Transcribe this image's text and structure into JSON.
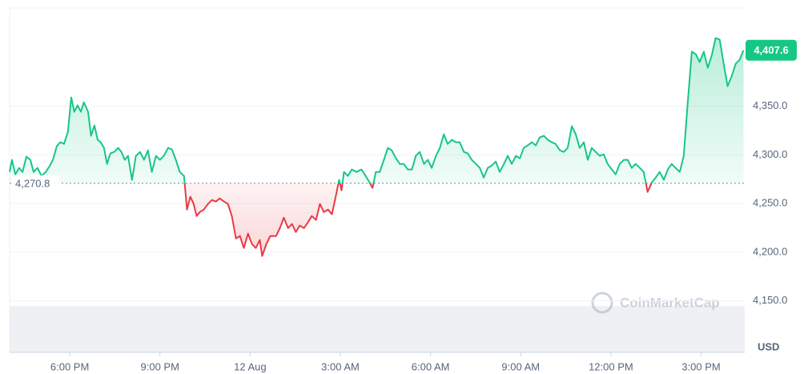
{
  "chart_data": {
    "type": "line",
    "currency_label": "USD",
    "watermark": "CoinMarketCap",
    "baseline": {
      "value": 4270.8,
      "label": "4,270.8"
    },
    "current_price": {
      "value": 4407.6,
      "label": "4,407.6"
    },
    "up_color": "#16c784",
    "down_color": "#ea3943",
    "grid": true,
    "xlim": [
      16,
      40.45
    ],
    "xticks": [
      {
        "value": 18,
        "label": "6:00 PM"
      },
      {
        "value": 21,
        "label": "9:00 PM"
      },
      {
        "value": 24,
        "label": "12 Aug"
      },
      {
        "value": 27,
        "label": "3:00 AM"
      },
      {
        "value": 30,
        "label": "6:00 AM"
      },
      {
        "value": 33,
        "label": "9:00 AM"
      },
      {
        "value": 36,
        "label": "12:00 PM"
      },
      {
        "value": 39,
        "label": "3:00 PM"
      }
    ],
    "ylim": [
      4097,
      4451
    ],
    "yticks": [
      {
        "value": 4150,
        "label": "4,150.0"
      },
      {
        "value": 4200,
        "label": "4,200.0"
      },
      {
        "value": 4250,
        "label": "4,250.0"
      },
      {
        "value": 4300,
        "label": "4,300.0"
      },
      {
        "value": 4350,
        "label": "4,350.0"
      }
    ],
    "x": [
      16.0,
      16.08,
      16.19,
      16.32,
      16.43,
      16.56,
      16.69,
      16.8,
      16.93,
      17.06,
      17.2,
      17.33,
      17.44,
      17.57,
      17.68,
      17.81,
      17.94,
      18.05,
      18.15,
      18.26,
      18.37,
      18.47,
      18.61,
      18.71,
      18.82,
      18.93,
      19.03,
      19.14,
      19.24,
      19.35,
      19.48,
      19.61,
      19.72,
      19.83,
      19.94,
      20.07,
      20.2,
      20.34,
      20.47,
      20.6,
      20.73,
      20.87,
      21.0,
      21.13,
      21.27,
      21.4,
      21.53,
      21.66,
      21.8,
      21.9,
      22.01,
      22.12,
      22.22,
      22.33,
      22.46,
      22.6,
      22.73,
      22.86,
      22.99,
      23.13,
      23.26,
      23.39,
      23.53,
      23.66,
      23.79,
      23.93,
      24.06,
      24.19,
      24.32,
      24.4,
      24.54,
      24.67,
      24.86,
      24.99,
      25.12,
      25.26,
      25.39,
      25.52,
      25.65,
      25.79,
      25.92,
      26.05,
      26.19,
      26.32,
      26.45,
      26.59,
      26.72,
      26.85,
      26.96,
      27.04,
      27.12,
      27.25,
      27.38,
      27.54,
      27.7,
      27.81,
      27.97,
      28.07,
      28.18,
      28.31,
      28.45,
      28.58,
      28.71,
      28.85,
      28.98,
      29.11,
      29.24,
      29.38,
      29.51,
      29.64,
      29.78,
      29.91,
      30.04,
      30.18,
      30.31,
      30.44,
      30.57,
      30.71,
      30.84,
      30.97,
      31.11,
      31.24,
      31.37,
      31.51,
      31.64,
      31.77,
      31.9,
      32.04,
      32.17,
      32.3,
      32.44,
      32.57,
      32.7,
      32.84,
      32.97,
      33.1,
      33.23,
      33.37,
      33.5,
      33.63,
      33.77,
      33.9,
      34.03,
      34.16,
      34.3,
      34.43,
      34.56,
      34.7,
      34.83,
      34.96,
      35.1,
      35.23,
      35.36,
      35.49,
      35.63,
      35.76,
      35.89,
      36.03,
      36.16,
      36.29,
      36.43,
      36.56,
      36.69,
      36.82,
      36.96,
      37.09,
      37.22,
      37.36,
      37.49,
      37.62,
      37.76,
      37.89,
      38.02,
      38.15,
      38.29,
      38.42,
      38.55,
      38.69,
      38.82,
      38.95,
      39.09,
      39.22,
      39.35,
      39.48,
      39.62,
      39.75,
      39.88,
      40.02,
      40.15,
      40.28,
      40.41
    ],
    "values": [
      4282.5,
      4294.9,
      4280.0,
      4286.6,
      4282.5,
      4298.2,
      4294.9,
      4282.5,
      4286.6,
      4278.4,
      4282.5,
      4288.3,
      4294.9,
      4308.9,
      4313.0,
      4311.3,
      4323.7,
      4359.1,
      4344.3,
      4350.9,
      4344.3,
      4354.2,
      4344.3,
      4319.6,
      4330.3,
      4315.5,
      4313.0,
      4307.2,
      4290.7,
      4301.5,
      4303.1,
      4307.2,
      4303.1,
      4294.9,
      4299.0,
      4274.3,
      4299.0,
      4303.1,
      4294.9,
      4304.7,
      4282.5,
      4299.0,
      4294.9,
      4299.0,
      4307.2,
      4305.6,
      4294.9,
      4282.5,
      4278.4,
      4243.8,
      4257.0,
      4249.6,
      4237.2,
      4241.3,
      4243.8,
      4249.6,
      4253.7,
      4252.0,
      4255.3,
      4252.0,
      4249.6,
      4237.2,
      4214.1,
      4216.6,
      4204.3,
      4219.1,
      4208.4,
      4204.3,
      4212.5,
      4196.0,
      4208.4,
      4216.6,
      4216.6,
      4224.8,
      4235.5,
      4224.8,
      4229.0,
      4220.7,
      4227.3,
      4224.8,
      4230.6,
      4237.2,
      4233.1,
      4249.6,
      4241.3,
      4243.8,
      4238.9,
      4257.8,
      4274.3,
      4263.6,
      4282.5,
      4278.4,
      4285.0,
      4282.5,
      4285.0,
      4280.0,
      4271.8,
      4266.0,
      4282.5,
      4282.5,
      4294.9,
      4307.2,
      4304.7,
      4296.5,
      4290.7,
      4290.7,
      4285.0,
      4285.0,
      4299.0,
      4303.1,
      4290.7,
      4294.9,
      4286.6,
      4299.0,
      4307.2,
      4321.2,
      4311.3,
      4315.5,
      4313.0,
      4313.0,
      4303.1,
      4301.5,
      4294.9,
      4290.7,
      4286.6,
      4276.7,
      4286.6,
      4289.1,
      4293.2,
      4282.5,
      4290.7,
      4299.0,
      4290.7,
      4299.0,
      4296.5,
      4307.2,
      4309.7,
      4313.0,
      4309.7,
      4317.9,
      4319.6,
      4315.5,
      4313.0,
      4311.3,
      4304.7,
      4303.1,
      4307.2,
      4329.5,
      4321.2,
      4307.2,
      4313.0,
      4294.9,
      4307.2,
      4303.1,
      4299.0,
      4300.6,
      4290.7,
      4285.0,
      4280.0,
      4290.7,
      4294.9,
      4294.9,
      4286.6,
      4290.7,
      4286.6,
      4282.5,
      4261.9,
      4271.8,
      4276.7,
      4282.5,
      4274.3,
      4285.0,
      4290.7,
      4286.6,
      4282.5,
      4299.0,
      4352.5,
      4406.1,
      4403.6,
      4395.4,
      4406.1,
      4389.6,
      4402.0,
      4420.1,
      4418.4,
      4393.7,
      4370.6,
      4381.4,
      4393.7,
      4397.8,
      4407.6
    ]
  }
}
